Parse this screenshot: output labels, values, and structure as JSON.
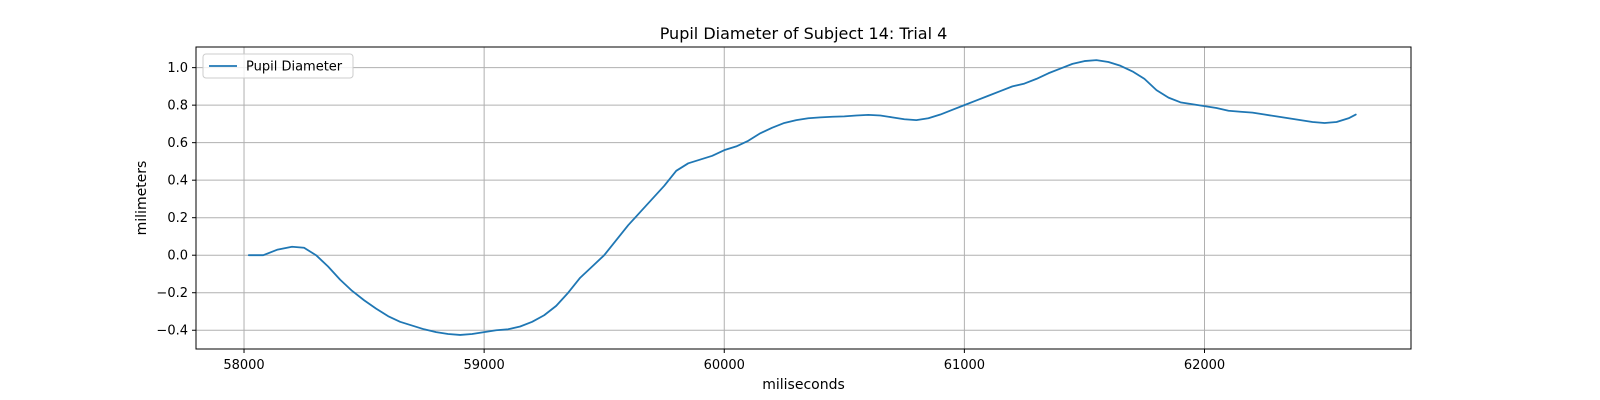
{
  "chart_data": {
    "type": "line",
    "title": "Pupil Diameter of Subject 14: Trial 4",
    "xlabel": "miliseconds",
    "ylabel": "milimeters",
    "xlim": [
      57800,
      62860
    ],
    "ylim": [
      -0.5,
      1.11
    ],
    "xticks": [
      58000,
      59000,
      60000,
      61000,
      62000
    ],
    "yticks": [
      -0.4,
      -0.2,
      0.0,
      0.2,
      0.4,
      0.6,
      0.8,
      1.0
    ],
    "ytick_labels": [
      "−0.4",
      "−0.2",
      "0.0",
      "0.2",
      "0.4",
      "0.6",
      "0.8",
      "1.0"
    ],
    "grid": true,
    "legend": {
      "location": "upper-left",
      "entries": [
        "Pupil Diameter"
      ]
    },
    "series": [
      {
        "name": "Pupil Diameter",
        "color": "#1f77b4",
        "x": [
          58020,
          58080,
          58140,
          58200,
          58250,
          58300,
          58350,
          58400,
          58450,
          58500,
          58550,
          58600,
          58650,
          58700,
          58750,
          58800,
          58850,
          58900,
          58950,
          59000,
          59050,
          59100,
          59150,
          59200,
          59250,
          59300,
          59350,
          59400,
          59450,
          59500,
          59550,
          59600,
          59650,
          59700,
          59750,
          59800,
          59850,
          59900,
          59950,
          60000,
          60050,
          60100,
          60150,
          60200,
          60250,
          60300,
          60350,
          60400,
          60450,
          60500,
          60550,
          60600,
          60650,
          60700,
          60750,
          60800,
          60850,
          60900,
          60950,
          61000,
          61050,
          61100,
          61150,
          61200,
          61250,
          61300,
          61350,
          61400,
          61450,
          61500,
          61550,
          61600,
          61650,
          61700,
          61750,
          61800,
          61850,
          61900,
          61950,
          62000,
          62050,
          62100,
          62150,
          62200,
          62250,
          62300,
          62350,
          62400,
          62450,
          62500,
          62550,
          62600,
          62630
        ],
        "y": [
          0.0,
          0.0,
          0.03,
          0.045,
          0.04,
          0.0,
          -0.06,
          -0.13,
          -0.19,
          -0.24,
          -0.285,
          -0.325,
          -0.355,
          -0.375,
          -0.395,
          -0.41,
          -0.42,
          -0.425,
          -0.42,
          -0.41,
          -0.4,
          -0.395,
          -0.38,
          -0.355,
          -0.32,
          -0.27,
          -0.2,
          -0.12,
          -0.06,
          0.0,
          0.08,
          0.16,
          0.23,
          0.3,
          0.37,
          0.45,
          0.49,
          0.51,
          0.53,
          0.56,
          0.58,
          0.61,
          0.65,
          0.68,
          0.705,
          0.72,
          0.73,
          0.735,
          0.738,
          0.74,
          0.745,
          0.748,
          0.745,
          0.735,
          0.725,
          0.72,
          0.73,
          0.75,
          0.775,
          0.8,
          0.825,
          0.85,
          0.875,
          0.9,
          0.915,
          0.94,
          0.97,
          0.995,
          1.02,
          1.035,
          1.04,
          1.03,
          1.01,
          0.98,
          0.94,
          0.88,
          0.84,
          0.815,
          0.805,
          0.795,
          0.785,
          0.77,
          0.765,
          0.76,
          0.75,
          0.74,
          0.73,
          0.72,
          0.71,
          0.705,
          0.71,
          0.73,
          0.75
        ]
      }
    ]
  }
}
